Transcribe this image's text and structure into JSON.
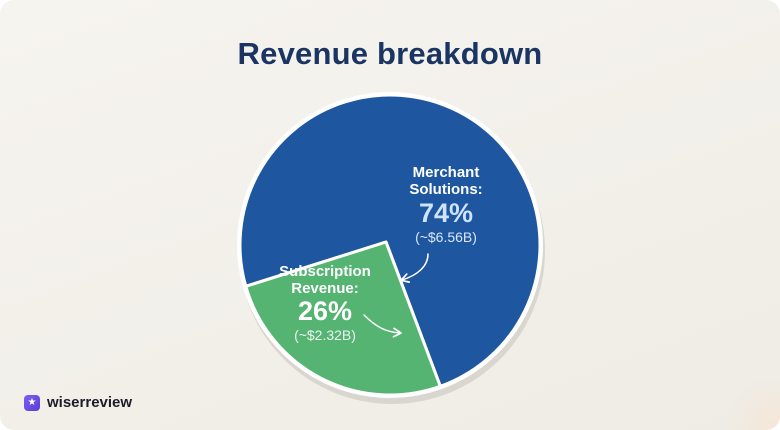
{
  "chart_data": {
    "type": "pie",
    "title": "Revenue breakdown",
    "slices": [
      {
        "label_lines": [
          "Merchant",
          "Solutions:"
        ],
        "percent_label": "74%",
        "value_label": "(~$6.56B)",
        "value": 74,
        "color": "#1f56a0",
        "label_color": "#ffffff",
        "percent_color": "#cfe3ff",
        "value_color": "#d8e6f8"
      },
      {
        "label_lines": [
          "Subscription",
          "Revenue:"
        ],
        "percent_label": "26%",
        "value_label": "(~$2.32B)",
        "value": 26,
        "color": "#55b472",
        "label_color": "#ffffff",
        "percent_color": "#ffffff",
        "value_color": "#eaf6ee"
      }
    ]
  },
  "brand": {
    "logo_text": "wiserreview",
    "logo_icon": "star-badge-icon",
    "accent": "#6a4be3"
  }
}
